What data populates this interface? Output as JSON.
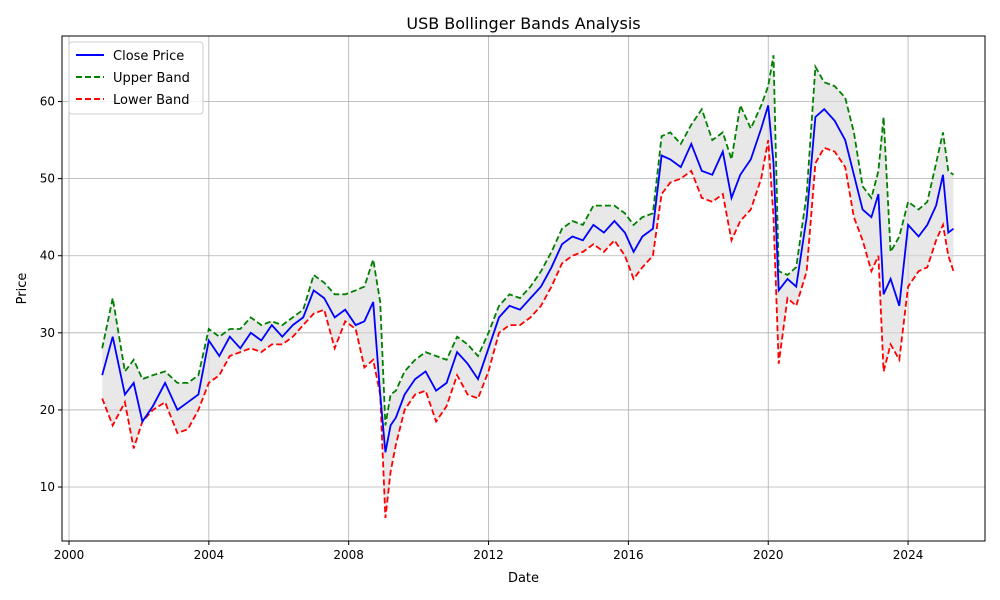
{
  "chart_data": {
    "type": "line",
    "title": "USB Bollinger Bands Analysis",
    "xlabel": "Date",
    "ylabel": "Price",
    "xlim": [
      1999.8,
      2026.2
    ],
    "ylim": [
      3.0,
      68.5
    ],
    "x_ticks": [
      2000,
      2004,
      2008,
      2012,
      2016,
      2020,
      2024
    ],
    "y_ticks": [
      10,
      20,
      30,
      40,
      50,
      60
    ],
    "grid": true,
    "legend_position": "upper left",
    "colors": {
      "close": "#0000ff",
      "upper": "#008000",
      "lower": "#ff0000",
      "fill": "#d9d9d9"
    },
    "x": [
      2000.95,
      2001.25,
      2001.6,
      2001.85,
      2002.1,
      2002.4,
      2002.75,
      2003.1,
      2003.4,
      2003.7,
      2004.0,
      2004.3,
      2004.6,
      2004.9,
      2005.2,
      2005.5,
      2005.8,
      2006.1,
      2006.4,
      2006.7,
      2007.0,
      2007.3,
      2007.6,
      2007.9,
      2008.2,
      2008.45,
      2008.7,
      2008.9,
      2009.05,
      2009.2,
      2009.35,
      2009.6,
      2009.9,
      2010.2,
      2010.5,
      2010.8,
      2011.1,
      2011.4,
      2011.7,
      2012.0,
      2012.3,
      2012.6,
      2012.9,
      2013.2,
      2013.5,
      2013.8,
      2014.1,
      2014.4,
      2014.7,
      2015.0,
      2015.3,
      2015.6,
      2015.9,
      2016.15,
      2016.4,
      2016.7,
      2016.95,
      2017.2,
      2017.5,
      2017.8,
      2018.1,
      2018.4,
      2018.7,
      2018.95,
      2019.2,
      2019.5,
      2019.8,
      2020.0,
      2020.15,
      2020.3,
      2020.55,
      2020.8,
      2021.1,
      2021.35,
      2021.6,
      2021.9,
      2022.2,
      2022.45,
      2022.7,
      2022.95,
      2023.15,
      2023.3,
      2023.5,
      2023.75,
      2024.0,
      2024.3,
      2024.55,
      2024.8,
      2025.0,
      2025.15,
      2025.3
    ],
    "series": [
      {
        "name": "Close Price",
        "values": [
          24.5,
          29.5,
          22.0,
          23.5,
          18.5,
          20.5,
          23.5,
          20.0,
          21.0,
          22.0,
          29.0,
          27.0,
          29.5,
          28.0,
          30.0,
          29.0,
          31.0,
          29.5,
          31.0,
          32.0,
          35.5,
          34.5,
          32.0,
          33.0,
          31.0,
          31.5,
          34.0,
          22.0,
          14.5,
          18.0,
          19.0,
          22.0,
          24.0,
          25.0,
          22.5,
          23.5,
          27.5,
          26.0,
          24.0,
          28.0,
          32.0,
          33.5,
          33.0,
          34.5,
          36.0,
          38.5,
          41.5,
          42.5,
          42.0,
          44.0,
          43.0,
          44.5,
          43.0,
          40.5,
          42.5,
          43.5,
          53.0,
          52.5,
          51.5,
          54.5,
          51.0,
          50.5,
          53.5,
          47.5,
          50.5,
          52.5,
          56.5,
          59.5,
          52.0,
          35.5,
          37.0,
          36.0,
          45.0,
          58.0,
          59.0,
          57.5,
          55.0,
          50.5,
          46.0,
          45.0,
          48.0,
          35.0,
          37.0,
          33.5,
          44.0,
          42.5,
          44.0,
          46.5,
          50.5,
          43.0,
          43.5
        ]
      },
      {
        "name": "Upper Band",
        "values": [
          28.0,
          34.5,
          25.0,
          26.5,
          24.0,
          24.5,
          25.0,
          23.5,
          23.5,
          24.5,
          30.5,
          29.5,
          30.5,
          30.5,
          32.0,
          31.0,
          31.5,
          31.0,
          32.0,
          33.0,
          37.5,
          36.5,
          35.0,
          35.0,
          35.5,
          36.0,
          39.5,
          34.0,
          18.0,
          22.0,
          22.5,
          25.0,
          26.5,
          27.5,
          27.0,
          26.5,
          29.5,
          28.5,
          27.0,
          30.0,
          33.5,
          35.0,
          34.5,
          36.0,
          38.0,
          40.5,
          43.5,
          44.5,
          44.0,
          46.5,
          46.5,
          46.5,
          45.5,
          44.0,
          45.0,
          45.5,
          55.5,
          56.0,
          54.5,
          57.0,
          59.0,
          55.0,
          56.0,
          52.5,
          59.5,
          56.5,
          59.5,
          62.0,
          66.0,
          38.0,
          37.5,
          38.5,
          48.0,
          64.5,
          62.5,
          62.0,
          60.5,
          56.0,
          49.0,
          47.5,
          51.0,
          58.0,
          40.5,
          42.5,
          47.0,
          46.0,
          47.0,
          52.0,
          56.0,
          51.0,
          50.5
        ]
      },
      {
        "name": "Lower Band",
        "values": [
          21.5,
          18.0,
          21.0,
          15.0,
          18.5,
          20.0,
          21.0,
          17.0,
          17.5,
          20.0,
          23.5,
          24.5,
          27.0,
          27.5,
          28.0,
          27.5,
          28.5,
          28.5,
          29.5,
          31.0,
          32.5,
          33.0,
          28.0,
          31.5,
          30.5,
          25.5,
          26.5,
          22.0,
          6.0,
          12.0,
          15.5,
          20.0,
          22.0,
          22.5,
          18.5,
          20.5,
          24.5,
          22.0,
          21.5,
          25.0,
          30.0,
          31.0,
          31.0,
          32.0,
          33.5,
          36.0,
          39.0,
          40.0,
          40.5,
          41.5,
          40.5,
          42.0,
          40.0,
          37.0,
          38.5,
          40.0,
          48.0,
          49.5,
          50.0,
          51.0,
          47.5,
          47.0,
          48.0,
          42.0,
          44.5,
          46.0,
          50.0,
          55.0,
          45.0,
          26.0,
          34.5,
          33.5,
          38.0,
          52.0,
          54.0,
          53.5,
          51.5,
          45.0,
          42.0,
          38.0,
          40.0,
          25.0,
          28.5,
          26.5,
          36.0,
          38.0,
          38.5,
          42.0,
          44.0,
          40.0,
          38.0
        ]
      }
    ]
  }
}
